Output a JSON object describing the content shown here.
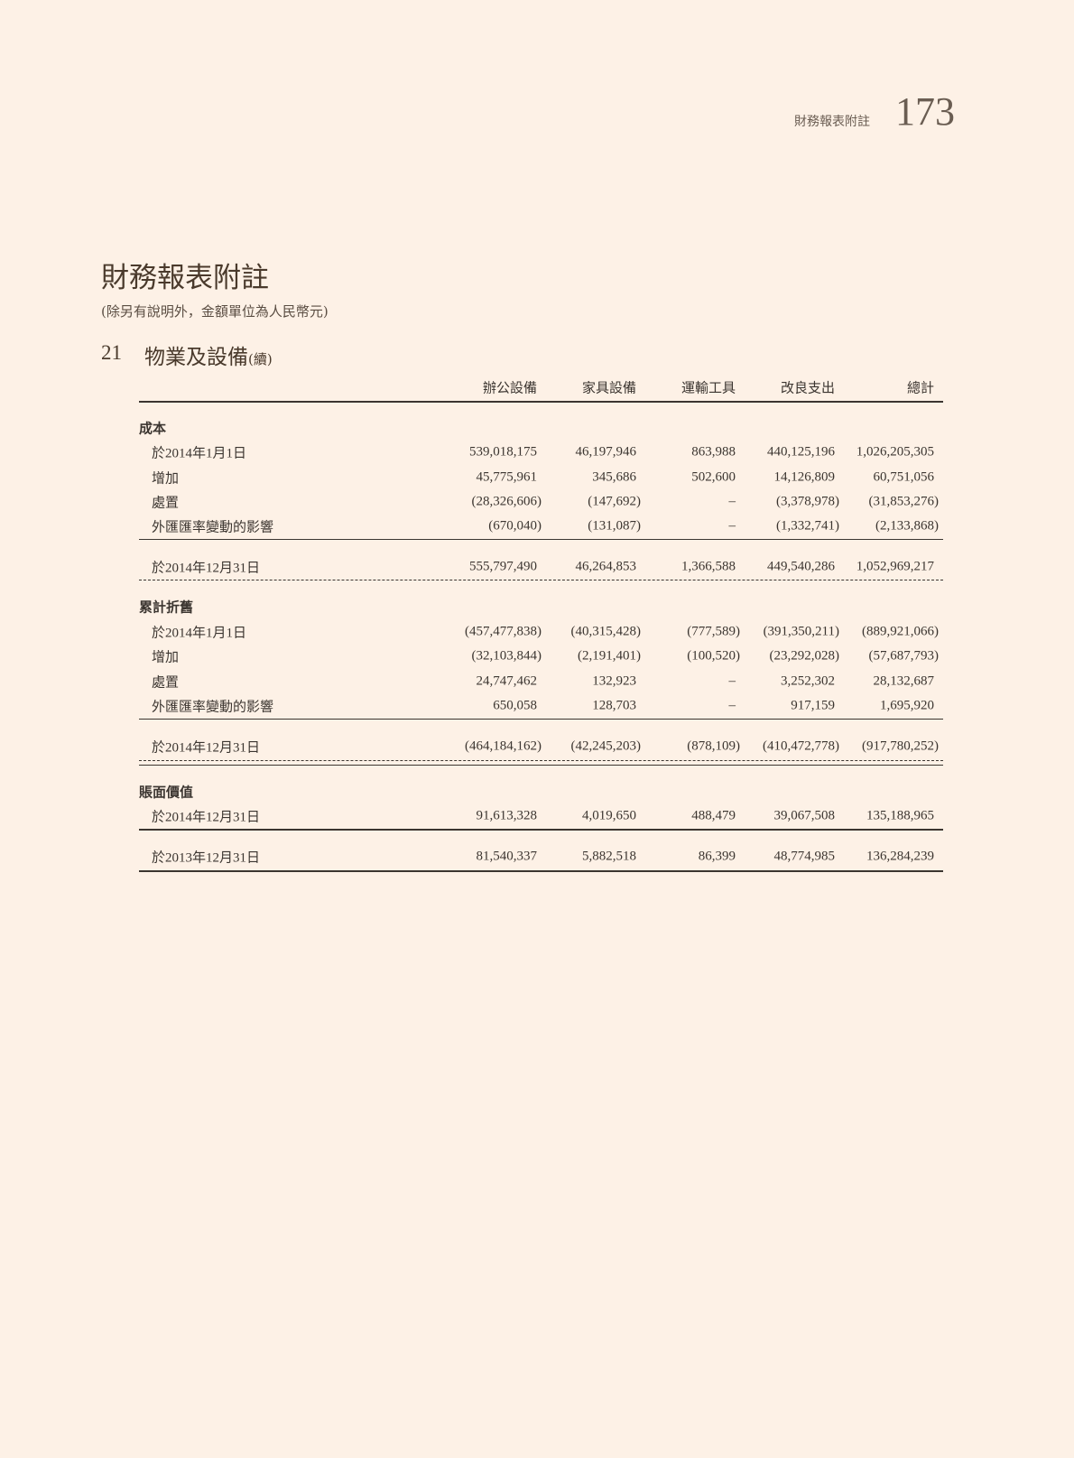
{
  "header": {
    "running_title": "財務報表附註",
    "page_number": "173"
  },
  "title": "財務報表附註",
  "subtitle": "(除另有說明外，金額單位為人民幣元)",
  "section": {
    "number": "21",
    "title": "物業及設備",
    "continued": "(續)"
  },
  "table": {
    "columns": [
      "辦公設備",
      "家具設備",
      "運輸工具",
      "改良支出",
      "總計"
    ],
    "rows": [
      {
        "type": "group",
        "label": "成本"
      },
      {
        "type": "row",
        "label": "於2014年1月1日",
        "values": [
          "539,018,175",
          "46,197,946",
          "863,988",
          "440,125,196",
          "1,026,205,305"
        ]
      },
      {
        "type": "row",
        "label": "增加",
        "values": [
          "45,775,961",
          "345,686",
          "502,600",
          "14,126,809",
          "60,751,056"
        ]
      },
      {
        "type": "row",
        "label": "處置",
        "values": [
          "(28,326,606)",
          "(147,692)",
          "–",
          "(3,378,978)",
          "(31,853,276)"
        ]
      },
      {
        "type": "row",
        "label": "外匯匯率變動的影響",
        "values": [
          "(670,040)",
          "(131,087)",
          "–",
          "(1,332,741)",
          "(2,133,868)"
        ]
      },
      {
        "type": "row",
        "label": "於2014年12月31日",
        "values": [
          "555,797,490",
          "46,264,853",
          "1,366,588",
          "449,540,286",
          "1,052,969,217"
        ]
      },
      {
        "type": "group",
        "label": "累計折舊"
      },
      {
        "type": "row",
        "label": "於2014年1月1日",
        "values": [
          "(457,477,838)",
          "(40,315,428)",
          "(777,589)",
          "(391,350,211)",
          "(889,921,066)"
        ]
      },
      {
        "type": "row",
        "label": "增加",
        "values": [
          "(32,103,844)",
          "(2,191,401)",
          "(100,520)",
          "(23,292,028)",
          "(57,687,793)"
        ]
      },
      {
        "type": "row",
        "label": "處置",
        "values": [
          "24,747,462",
          "132,923",
          "–",
          "3,252,302",
          "28,132,687"
        ]
      },
      {
        "type": "row",
        "label": "外匯匯率變動的影響",
        "values": [
          "650,058",
          "128,703",
          "–",
          "917,159",
          "1,695,920"
        ]
      },
      {
        "type": "row",
        "label": "於2014年12月31日",
        "values": [
          "(464,184,162)",
          "(42,245,203)",
          "(878,109)",
          "(410,472,778)",
          "(917,780,252)"
        ]
      },
      {
        "type": "group",
        "label": "賬面價值"
      },
      {
        "type": "row",
        "label": "於2014年12月31日",
        "values": [
          "91,613,328",
          "4,019,650",
          "488,479",
          "39,067,508",
          "135,188,965"
        ]
      },
      {
        "type": "row",
        "label": "於2013年12月31日",
        "values": [
          "81,540,337",
          "5,882,518",
          "86,399",
          "48,774,985",
          "136,284,239"
        ]
      }
    ]
  }
}
